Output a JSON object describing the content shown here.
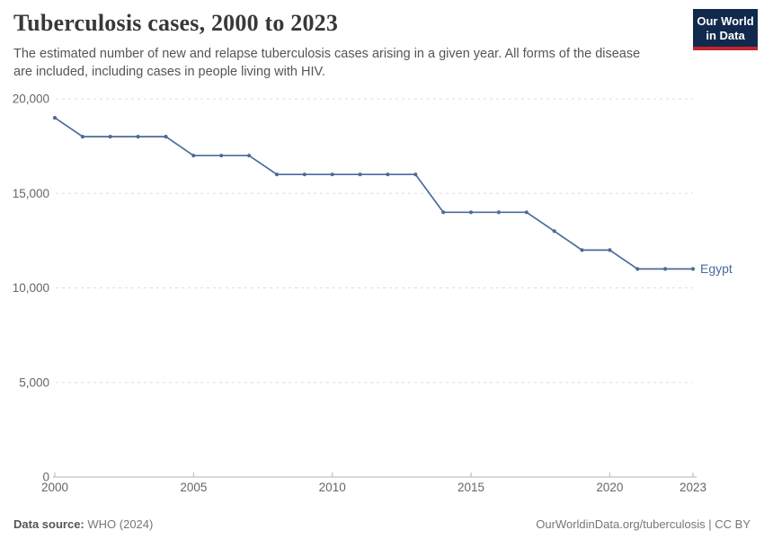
{
  "header": {
    "title": "Tuberculosis cases, 2000 to 2023",
    "subtitle": "The estimated number of new and relapse tuberculosis cases arising in a given year. All forms of the disease are included, including cases in people living with HIV.",
    "logo": {
      "line1": "Our World",
      "line2": "in Data"
    }
  },
  "chart_data": {
    "type": "line",
    "title": "Tuberculosis cases, 2000 to 2023",
    "xlabel": "",
    "ylabel": "",
    "x": [
      2000,
      2001,
      2002,
      2003,
      2004,
      2005,
      2006,
      2007,
      2008,
      2009,
      2010,
      2011,
      2012,
      2013,
      2014,
      2015,
      2016,
      2017,
      2018,
      2019,
      2020,
      2021,
      2022,
      2023
    ],
    "series": [
      {
        "name": "Egypt",
        "color": "#4C6A9C",
        "values": [
          19000,
          18000,
          18000,
          18000,
          18000,
          17000,
          17000,
          17000,
          16000,
          16000,
          16000,
          16000,
          16000,
          16000,
          14000,
          14000,
          14000,
          14000,
          13000,
          12000,
          12000,
          11000,
          11000,
          11000
        ]
      }
    ],
    "xlim": [
      2000,
      2023
    ],
    "ylim": [
      0,
      20000
    ],
    "x_ticks": [
      2000,
      2005,
      2010,
      2015,
      2020,
      2023
    ],
    "y_ticks": [
      0,
      5000,
      10000,
      15000,
      20000
    ],
    "y_tick_labels": [
      "0",
      "5,000",
      "10,000",
      "15,000",
      "20,000"
    ],
    "grid": "horizontal-dashed",
    "legend_position": "end-of-line-label"
  },
  "footer": {
    "datasource_label": "Data source:",
    "datasource_value": "WHO (2024)",
    "credit_link": "OurWorldinData.org/tuberculosis",
    "credit_separator": "|",
    "credit_license": "CC BY"
  },
  "colors": {
    "series": "#4C6A9C",
    "logo_background": "#12294E",
    "logo_underline": "#C0262C",
    "title_text": "#383838",
    "subtitle_text": "#555555",
    "axis_text": "#666666",
    "gridline": "#DDDDDD",
    "axis_line": "#B3B3B3",
    "footer_text": "#777777"
  }
}
